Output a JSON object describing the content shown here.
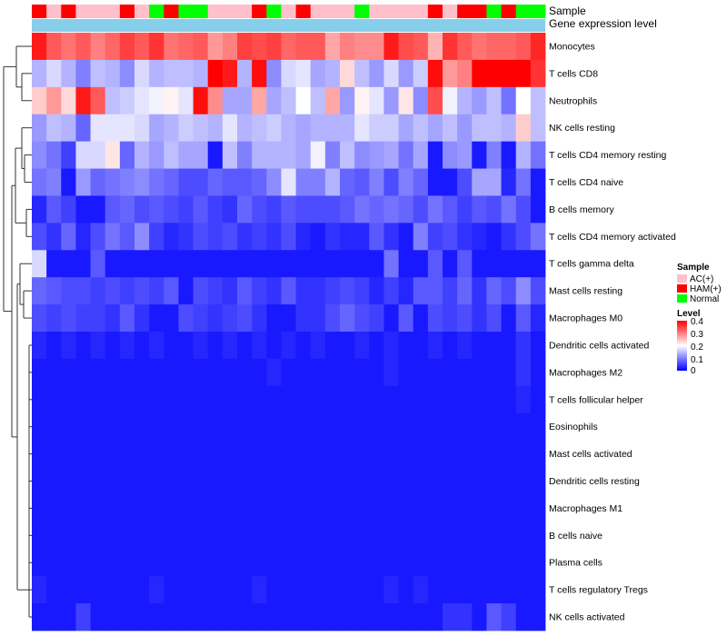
{
  "chart_data": {
    "type": "heatmap",
    "title": "",
    "annotation_labels": {
      "sample": "Sample",
      "expression": "Gene expression level"
    },
    "rows": [
      "Monocytes",
      "T cells CD8",
      "Neutrophils",
      "NK cells resting",
      "T cells CD4 memory resting",
      "T cells CD4 naive",
      "B cells memory",
      "T cells CD4 memory activated",
      "T cells gamma delta",
      "Mast cells resting",
      "Macrophages M0",
      "Dendritic cells activated",
      "Macrophages M2",
      "T cells follicular helper",
      "Eosinophils",
      "Mast cells activated",
      "Dendritic cells resting",
      "Macrophages M1",
      "B cells naive",
      "Plasma cells",
      "T cells regulatory  Tregs",
      "NK cells activated"
    ],
    "sample_groups": [
      "HAM(+)",
      "AC(+)",
      "HAM(+)",
      "AC(+)",
      "AC(+)",
      "AC(+)",
      "HAM(+)",
      "AC(+)",
      "Normal",
      "HAM(+)",
      "Normal",
      "Normal",
      "AC(+)",
      "AC(+)",
      "AC(+)",
      "HAM(+)",
      "Normal",
      "AC(+)",
      "HAM(+)",
      "AC(+)",
      "AC(+)",
      "AC(+)",
      "Normal",
      "AC(+)",
      "AC(+)",
      "AC(+)",
      "AC(+)",
      "HAM(+)",
      "AC(+)",
      "HAM(+)",
      "HAM(+)",
      "Normal",
      "HAM(+)",
      "Normal",
      "Normal"
    ],
    "sample_colors": {
      "AC(+)": "#ffc0cb",
      "HAM(+)": "#ff0000",
      "Normal": "#00ff00"
    },
    "expression_bar_color": "#87ceeb",
    "color_scale": {
      "min": 0,
      "max": 0.4,
      "low": "#0000ff",
      "mid": "#ffffff",
      "high": "#ff0000",
      "midpoint": 0.2
    },
    "legend": {
      "sample_title": "Sample",
      "sample_entries": [
        "AC(+)",
        "HAM(+)",
        "Normal"
      ],
      "level_title": "Level",
      "level_ticks": [
        "0.4",
        "0.3",
        "0.2",
        "0.1",
        "0"
      ]
    },
    "values": [
      [
        0.38,
        0.33,
        0.31,
        0.33,
        0.3,
        0.32,
        0.35,
        0.33,
        0.36,
        0.31,
        0.32,
        0.33,
        0.28,
        0.3,
        0.35,
        0.34,
        0.35,
        0.32,
        0.33,
        0.33,
        0.27,
        0.3,
        0.29,
        0.29,
        0.38,
        0.34,
        0.33,
        0.26,
        0.36,
        0.33,
        0.31,
        0.32,
        0.32,
        0.33,
        0.37
      ],
      [
        0.14,
        0.17,
        0.14,
        0.1,
        0.15,
        0.14,
        0.11,
        0.17,
        0.14,
        0.15,
        0.15,
        0.14,
        0.4,
        0.38,
        0.14,
        0.39,
        0.11,
        0.17,
        0.18,
        0.13,
        0.14,
        0.23,
        0.15,
        0.12,
        0.17,
        0.12,
        0.16,
        0.39,
        0.28,
        0.3,
        0.4,
        0.4,
        0.4,
        0.4,
        0.36
      ],
      [
        0.24,
        0.28,
        0.23,
        0.38,
        0.33,
        0.15,
        0.16,
        0.18,
        0.19,
        0.21,
        0.18,
        0.39,
        0.29,
        0.13,
        0.13,
        0.27,
        0.13,
        0.15,
        0.2,
        0.15,
        0.27,
        0.12,
        0.21,
        0.18,
        0.12,
        0.22,
        0.11,
        0.34,
        0.19,
        0.14,
        0.12,
        0.15,
        0.09,
        0.2,
        0.15
      ],
      [
        0.12,
        0.15,
        0.14,
        0.08,
        0.18,
        0.18,
        0.18,
        0.17,
        0.13,
        0.14,
        0.16,
        0.15,
        0.14,
        0.18,
        0.14,
        0.15,
        0.16,
        0.14,
        0.13,
        0.14,
        0.14,
        0.14,
        0.18,
        0.16,
        0.16,
        0.13,
        0.15,
        0.13,
        0.15,
        0.12,
        0.15,
        0.15,
        0.14,
        0.24,
        0.15
      ],
      [
        0.11,
        0.09,
        0.05,
        0.17,
        0.17,
        0.22,
        0.08,
        0.14,
        0.12,
        0.15,
        0.13,
        0.13,
        0.02,
        0.15,
        0.1,
        0.14,
        0.14,
        0.14,
        0.13,
        0.19,
        0.1,
        0.15,
        0.11,
        0.12,
        0.13,
        0.09,
        0.13,
        0.02,
        0.11,
        0.12,
        0.02,
        0.1,
        0.02,
        0.14,
        0.09
      ],
      [
        0.09,
        0.1,
        0.02,
        0.12,
        0.08,
        0.09,
        0.1,
        0.11,
        0.09,
        0.08,
        0.06,
        0.06,
        0.08,
        0.07,
        0.07,
        0.08,
        0.11,
        0.18,
        0.1,
        0.1,
        0.14,
        0.08,
        0.07,
        0.1,
        0.06,
        0.1,
        0.08,
        0.02,
        0.02,
        0.06,
        0.13,
        0.13,
        0.03,
        0.09,
        0.02
      ],
      [
        0.03,
        0.07,
        0.05,
        0.02,
        0.02,
        0.07,
        0.08,
        0.06,
        0.07,
        0.06,
        0.05,
        0.07,
        0.05,
        0.04,
        0.08,
        0.06,
        0.05,
        0.07,
        0.06,
        0.06,
        0.06,
        0.07,
        0.09,
        0.08,
        0.09,
        0.08,
        0.06,
        0.09,
        0.07,
        0.05,
        0.07,
        0.06,
        0.09,
        0.06,
        0.02
      ],
      [
        0.06,
        0.04,
        0.08,
        0.03,
        0.06,
        0.09,
        0.07,
        0.11,
        0.05,
        0.03,
        0.04,
        0.06,
        0.05,
        0.06,
        0.04,
        0.05,
        0.04,
        0.06,
        0.03,
        0.02,
        0.04,
        0.03,
        0.03,
        0.07,
        0.04,
        0.02,
        0.1,
        0.05,
        0.06,
        0.04,
        0.03,
        0.02,
        0.04,
        0.06,
        0.09
      ],
      [
        0.17,
        0.02,
        0.02,
        0.02,
        0.07,
        0.02,
        0.02,
        0.02,
        0.02,
        0.02,
        0.02,
        0.02,
        0.02,
        0.02,
        0.02,
        0.02,
        0.02,
        0.02,
        0.02,
        0.02,
        0.02,
        0.02,
        0.02,
        0.02,
        0.09,
        0.02,
        0.02,
        0.07,
        0.02,
        0.07,
        0.02,
        0.02,
        0.02,
        0.02,
        0.02
      ],
      [
        0.08,
        0.07,
        0.06,
        0.06,
        0.05,
        0.06,
        0.05,
        0.06,
        0.05,
        0.07,
        0.02,
        0.06,
        0.05,
        0.04,
        0.07,
        0.05,
        0.04,
        0.07,
        0.04,
        0.04,
        0.05,
        0.06,
        0.05,
        0.03,
        0.05,
        0.03,
        0.07,
        0.07,
        0.05,
        0.08,
        0.04,
        0.08,
        0.06,
        0.11,
        0.06
      ],
      [
        0.06,
        0.05,
        0.06,
        0.05,
        0.05,
        0.04,
        0.07,
        0.04,
        0.02,
        0.02,
        0.06,
        0.05,
        0.04,
        0.05,
        0.06,
        0.04,
        0.02,
        0.02,
        0.04,
        0.04,
        0.06,
        0.08,
        0.06,
        0.05,
        0.02,
        0.07,
        0.02,
        0.06,
        0.05,
        0.06,
        0.04,
        0.06,
        0.02,
        0.07,
        0.03
      ],
      [
        0.03,
        0.02,
        0.03,
        0.02,
        0.03,
        0.02,
        0.03,
        0.02,
        0.03,
        0.02,
        0.02,
        0.03,
        0.02,
        0.03,
        0.02,
        0.03,
        0.02,
        0.03,
        0.02,
        0.03,
        0.02,
        0.02,
        0.03,
        0.02,
        0.03,
        0.02,
        0.02,
        0.03,
        0.02,
        0.03,
        0.02,
        0.02,
        0.02,
        0.04,
        0.02
      ],
      [
        0.02,
        0.02,
        0.02,
        0.02,
        0.02,
        0.02,
        0.02,
        0.02,
        0.02,
        0.02,
        0.02,
        0.02,
        0.02,
        0.02,
        0.02,
        0.02,
        0.03,
        0.02,
        0.02,
        0.02,
        0.02,
        0.02,
        0.02,
        0.02,
        0.03,
        0.02,
        0.02,
        0.02,
        0.02,
        0.02,
        0.02,
        0.02,
        0.02,
        0.04,
        0.02
      ],
      [
        0.02,
        0.02,
        0.02,
        0.02,
        0.02,
        0.02,
        0.02,
        0.02,
        0.02,
        0.02,
        0.02,
        0.02,
        0.02,
        0.02,
        0.02,
        0.02,
        0.02,
        0.02,
        0.02,
        0.02,
        0.02,
        0.02,
        0.02,
        0.02,
        0.02,
        0.02,
        0.02,
        0.02,
        0.02,
        0.02,
        0.02,
        0.02,
        0.02,
        0.03,
        0.02
      ],
      [
        0.02,
        0.02,
        0.02,
        0.02,
        0.02,
        0.02,
        0.02,
        0.02,
        0.02,
        0.02,
        0.02,
        0.02,
        0.02,
        0.02,
        0.02,
        0.02,
        0.02,
        0.02,
        0.02,
        0.02,
        0.02,
        0.02,
        0.02,
        0.02,
        0.02,
        0.02,
        0.02,
        0.02,
        0.02,
        0.02,
        0.02,
        0.02,
        0.02,
        0.02,
        0.02
      ],
      [
        0.02,
        0.02,
        0.02,
        0.02,
        0.02,
        0.02,
        0.02,
        0.02,
        0.02,
        0.02,
        0.02,
        0.02,
        0.02,
        0.02,
        0.02,
        0.02,
        0.02,
        0.02,
        0.02,
        0.02,
        0.02,
        0.02,
        0.02,
        0.02,
        0.02,
        0.02,
        0.02,
        0.02,
        0.02,
        0.02,
        0.02,
        0.02,
        0.02,
        0.02,
        0.02
      ],
      [
        0.02,
        0.02,
        0.02,
        0.02,
        0.02,
        0.02,
        0.02,
        0.02,
        0.02,
        0.02,
        0.02,
        0.02,
        0.02,
        0.02,
        0.02,
        0.02,
        0.02,
        0.02,
        0.02,
        0.02,
        0.02,
        0.02,
        0.02,
        0.02,
        0.02,
        0.02,
        0.02,
        0.02,
        0.02,
        0.02,
        0.02,
        0.02,
        0.02,
        0.02,
        0.02
      ],
      [
        0.02,
        0.02,
        0.02,
        0.02,
        0.02,
        0.02,
        0.02,
        0.02,
        0.02,
        0.02,
        0.02,
        0.02,
        0.02,
        0.02,
        0.02,
        0.02,
        0.02,
        0.02,
        0.02,
        0.02,
        0.02,
        0.02,
        0.02,
        0.02,
        0.02,
        0.02,
        0.02,
        0.02,
        0.02,
        0.02,
        0.02,
        0.02,
        0.02,
        0.02,
        0.02
      ],
      [
        0.02,
        0.02,
        0.02,
        0.02,
        0.02,
        0.02,
        0.02,
        0.02,
        0.02,
        0.02,
        0.02,
        0.02,
        0.02,
        0.02,
        0.02,
        0.02,
        0.02,
        0.02,
        0.02,
        0.02,
        0.02,
        0.02,
        0.02,
        0.02,
        0.02,
        0.02,
        0.02,
        0.02,
        0.02,
        0.02,
        0.02,
        0.02,
        0.02,
        0.02,
        0.02
      ],
      [
        0.02,
        0.02,
        0.02,
        0.02,
        0.02,
        0.02,
        0.02,
        0.02,
        0.02,
        0.02,
        0.02,
        0.02,
        0.02,
        0.02,
        0.02,
        0.02,
        0.02,
        0.02,
        0.02,
        0.02,
        0.02,
        0.02,
        0.02,
        0.02,
        0.02,
        0.02,
        0.02,
        0.02,
        0.02,
        0.02,
        0.02,
        0.02,
        0.02,
        0.02,
        0.02
      ],
      [
        0.03,
        0.02,
        0.02,
        0.02,
        0.02,
        0.02,
        0.02,
        0.02,
        0.03,
        0.02,
        0.02,
        0.02,
        0.02,
        0.02,
        0.02,
        0.03,
        0.02,
        0.02,
        0.02,
        0.02,
        0.02,
        0.02,
        0.02,
        0.02,
        0.03,
        0.02,
        0.03,
        0.02,
        0.02,
        0.02,
        0.02,
        0.02,
        0.02,
        0.02,
        0.02
      ],
      [
        0.02,
        0.02,
        0.02,
        0.05,
        0.02,
        0.02,
        0.02,
        0.02,
        0.02,
        0.02,
        0.02,
        0.02,
        0.02,
        0.02,
        0.02,
        0.02,
        0.02,
        0.02,
        0.02,
        0.02,
        0.02,
        0.02,
        0.02,
        0.02,
        0.02,
        0.02,
        0.02,
        0.02,
        0.04,
        0.04,
        0.02,
        0.07,
        0.05,
        0.02,
        0.02
      ]
    ]
  }
}
